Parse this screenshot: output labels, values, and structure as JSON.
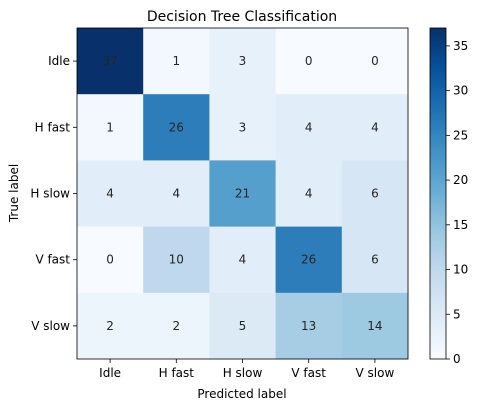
{
  "chart_data": {
    "type": "heatmap",
    "title": "Decision Tree Classification",
    "xlabel": "Predicted label",
    "ylabel": "True label",
    "x_categories": [
      "Idle",
      "H fast",
      "H slow",
      "V fast",
      "V slow"
    ],
    "y_categories": [
      "Idle",
      "H fast",
      "H slow",
      "V fast",
      "V slow"
    ],
    "values": [
      [
        37,
        1,
        3,
        0,
        0
      ],
      [
        1,
        26,
        3,
        4,
        4
      ],
      [
        4,
        4,
        21,
        4,
        6
      ],
      [
        0,
        10,
        4,
        26,
        6
      ],
      [
        2,
        2,
        5,
        13,
        14
      ]
    ],
    "colormap": "Blues",
    "vmin": 0,
    "vmax": 37,
    "colorbar_ticks": [
      0,
      5,
      10,
      15,
      20,
      25,
      30,
      35
    ],
    "text_color_dark": "#1f4e9a",
    "text_color_light": "#ffffff"
  }
}
